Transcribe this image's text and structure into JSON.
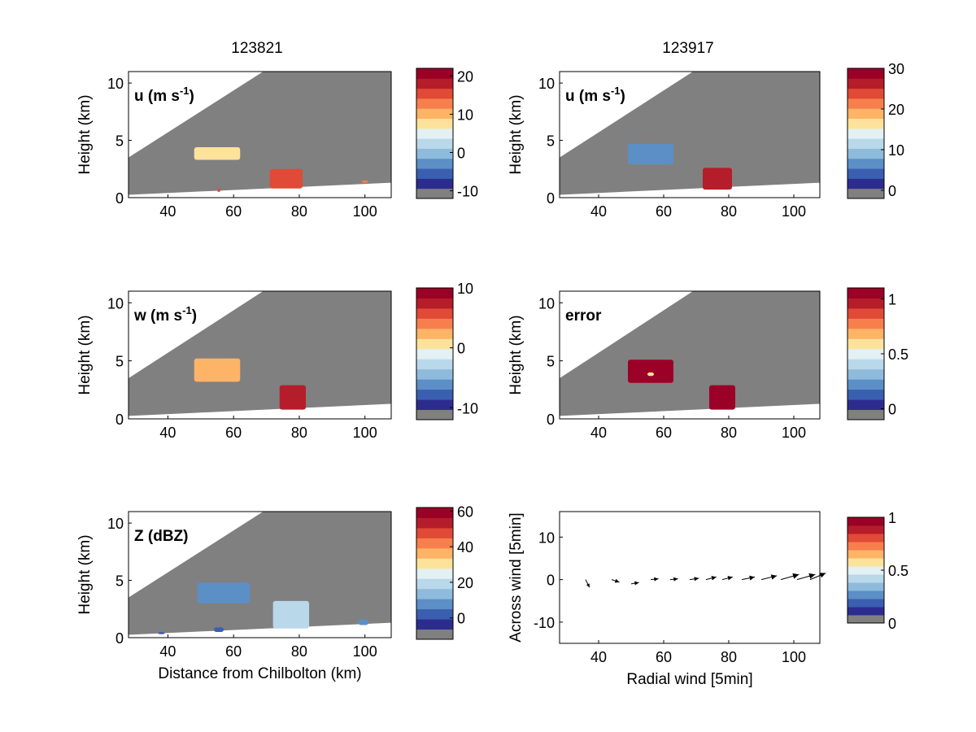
{
  "column_titles": [
    "123821",
    "123917"
  ],
  "colors": {
    "background_missing": "#808080",
    "colormap": [
      "#2c2c8f",
      "#3a5fb0",
      "#5b8fc6",
      "#8ebbdb",
      "#b9d8ea",
      "#e3f0f4",
      "#fde29b",
      "#fdb467",
      "#f77f4d",
      "#e04a36",
      "#b51d2a",
      "#9b0026"
    ]
  },
  "panels": [
    {
      "label": "u (m s",
      "label_sup": "-1",
      "label_end": ")",
      "ylabel": "Height (km)",
      "xlabel": "",
      "x_ticks": [
        "40",
        "60",
        "80",
        "100"
      ],
      "y_ticks": [
        "0",
        "5",
        "10"
      ],
      "colorbar_ticks": [
        "20",
        "10",
        "0",
        "-10"
      ]
    },
    {
      "label": "u (m s",
      "label_sup": "-1",
      "label_end": ")",
      "ylabel": "Height (km)",
      "xlabel": "",
      "x_ticks": [
        "40",
        "60",
        "80",
        "100"
      ],
      "y_ticks": [
        "0",
        "5",
        "10"
      ],
      "colorbar_ticks": [
        "30",
        "20",
        "10",
        "0"
      ]
    },
    {
      "label": "w (m s",
      "label_sup": "-1",
      "label_end": ")",
      "ylabel": "Height (km)",
      "xlabel": "",
      "x_ticks": [
        "40",
        "60",
        "80",
        "100"
      ],
      "y_ticks": [
        "0",
        "5",
        "10"
      ],
      "colorbar_ticks": [
        "10",
        "0",
        "-10"
      ]
    },
    {
      "label": "error",
      "label_sup": "",
      "label_end": "",
      "ylabel": "Height (km)",
      "xlabel": "",
      "x_ticks": [
        "40",
        "60",
        "80",
        "100"
      ],
      "y_ticks": [
        "0",
        "5",
        "10"
      ],
      "colorbar_ticks": [
        "1",
        "0.5",
        "0"
      ]
    },
    {
      "label": "Z (dBZ)",
      "label_sup": "",
      "label_end": "",
      "ylabel": "Height (km)",
      "xlabel": "Distance from Chilbolton (km)",
      "x_ticks": [
        "40",
        "60",
        "80",
        "100"
      ],
      "y_ticks": [
        "0",
        "5",
        "10"
      ],
      "colorbar_ticks": [
        "60",
        "40",
        "20",
        "0"
      ]
    },
    {
      "label": "",
      "label_sup": "",
      "label_end": "",
      "ylabel": "Across wind [5min]",
      "xlabel": "Radial wind [5min]",
      "x_ticks": [
        "40",
        "60",
        "80",
        "100"
      ],
      "y_ticks": [
        "10",
        "0",
        "-10"
      ],
      "colorbar_ticks": [
        "1",
        "0.5",
        "0"
      ]
    }
  ],
  "chart_data": [
    {
      "type": "heatmap",
      "title": "123821",
      "field": "u (m s-1)",
      "xlabel": "",
      "ylabel": "Height (km)",
      "xlim": [
        28,
        108
      ],
      "ylim": [
        0,
        11
      ],
      "colorbar_range": [
        -12,
        22
      ],
      "features": [
        {
          "x_range": [
            48,
            62
          ],
          "height_range": [
            3.3,
            4.4
          ],
          "value": 7
        },
        {
          "x_range": [
            71,
            81
          ],
          "height_range": [
            0.8,
            2.5
          ],
          "value": 14
        },
        {
          "x_range": [
            55,
            56
          ],
          "height_range": [
            0.5,
            0.8
          ],
          "value": 15
        },
        {
          "x_range": [
            99,
            101
          ],
          "height_range": [
            1.3,
            1.5
          ],
          "value": 12
        }
      ]
    },
    {
      "type": "heatmap",
      "title": "123917",
      "field": "u (m s-1)",
      "xlabel": "",
      "ylabel": "Height (km)",
      "xlim": [
        28,
        108
      ],
      "ylim": [
        0,
        11
      ],
      "colorbar_range": [
        -2,
        30
      ],
      "features": [
        {
          "x_range": [
            49,
            63
          ],
          "height_range": [
            2.9,
            4.7
          ],
          "value": 5
        },
        {
          "x_range": [
            72,
            81
          ],
          "height_range": [
            0.7,
            2.6
          ],
          "value": 25
        }
      ]
    },
    {
      "type": "heatmap",
      "title": "123821",
      "field": "w (m s-1)",
      "xlabel": "",
      "ylabel": "Height (km)",
      "xlim": [
        28,
        108
      ],
      "ylim": [
        0,
        11
      ],
      "colorbar_range": [
        -12,
        10
      ],
      "features": [
        {
          "x_range": [
            48,
            62
          ],
          "height_range": [
            3.2,
            5.2
          ],
          "value": 2
        },
        {
          "x_range": [
            74,
            82
          ],
          "height_range": [
            0.8,
            2.9
          ],
          "value": 8
        }
      ]
    },
    {
      "type": "heatmap",
      "title": "123917",
      "field": "error",
      "xlabel": "",
      "ylabel": "Height (km)",
      "xlim": [
        28,
        108
      ],
      "ylim": [
        0,
        11
      ],
      "colorbar_range": [
        -0.1,
        1.1
      ],
      "features": [
        {
          "x_range": [
            49,
            63
          ],
          "height_range": [
            3.1,
            5.1
          ],
          "value": 1.0
        },
        {
          "x_range": [
            55,
            57
          ],
          "height_range": [
            3.7,
            4.0
          ],
          "value": 0.6
        },
        {
          "x_range": [
            74,
            82
          ],
          "height_range": [
            0.8,
            2.9
          ],
          "value": 1.0
        }
      ]
    },
    {
      "type": "heatmap",
      "title": "123821",
      "field": "Z (dBZ)",
      "xlabel": "Distance from Chilbolton (km)",
      "ylabel": "Height (km)",
      "xlim": [
        28,
        108
      ],
      "ylim": [
        0,
        11
      ],
      "colorbar_range": [
        -12,
        62
      ],
      "features": [
        {
          "x_range": [
            49,
            65
          ],
          "height_range": [
            3.0,
            4.8
          ],
          "value": 5
        },
        {
          "x_range": [
            72,
            83
          ],
          "height_range": [
            0.8,
            3.2
          ],
          "value": 15
        },
        {
          "x_range": [
            54,
            57
          ],
          "height_range": [
            0.5,
            0.9
          ],
          "value": 0
        },
        {
          "x_range": [
            98,
            101
          ],
          "height_range": [
            1.1,
            1.6
          ],
          "value": 5
        },
        {
          "x_range": [
            37,
            39
          ],
          "height_range": [
            0.3,
            0.5
          ],
          "value": 0
        }
      ]
    },
    {
      "type": "scatter",
      "title": "",
      "field": "wind vectors",
      "xlabel": "Radial wind [5min]",
      "ylabel": "Across wind [5min]",
      "xlim": [
        28,
        108
      ],
      "ylim": [
        -15,
        16
      ],
      "colorbar_range": [
        0,
        1
      ],
      "points": [
        {
          "x": 36,
          "y": 0,
          "u": 1.5,
          "v": -3
        },
        {
          "x": 44,
          "y": 0,
          "u": 3,
          "v": -1
        },
        {
          "x": 50,
          "y": -1,
          "u": 3,
          "v": 0.5
        },
        {
          "x": 56,
          "y": 0,
          "u": 3,
          "v": 0.3
        },
        {
          "x": 62,
          "y": 0,
          "u": 3,
          "v": 0.3
        },
        {
          "x": 68,
          "y": 0,
          "u": 3.5,
          "v": 0.5
        },
        {
          "x": 73,
          "y": 0,
          "u": 4,
          "v": 1
        },
        {
          "x": 78,
          "y": 0,
          "u": 4,
          "v": 1
        },
        {
          "x": 84,
          "y": 0,
          "u": 5,
          "v": 1
        },
        {
          "x": 90,
          "y": 0,
          "u": 6,
          "v": 1.5
        },
        {
          "x": 96,
          "y": 0,
          "u": 7,
          "v": 2
        },
        {
          "x": 101,
          "y": 0,
          "u": 7,
          "v": 2
        },
        {
          "x": 105,
          "y": 0,
          "u": 6,
          "v": 2.5
        }
      ]
    }
  ]
}
